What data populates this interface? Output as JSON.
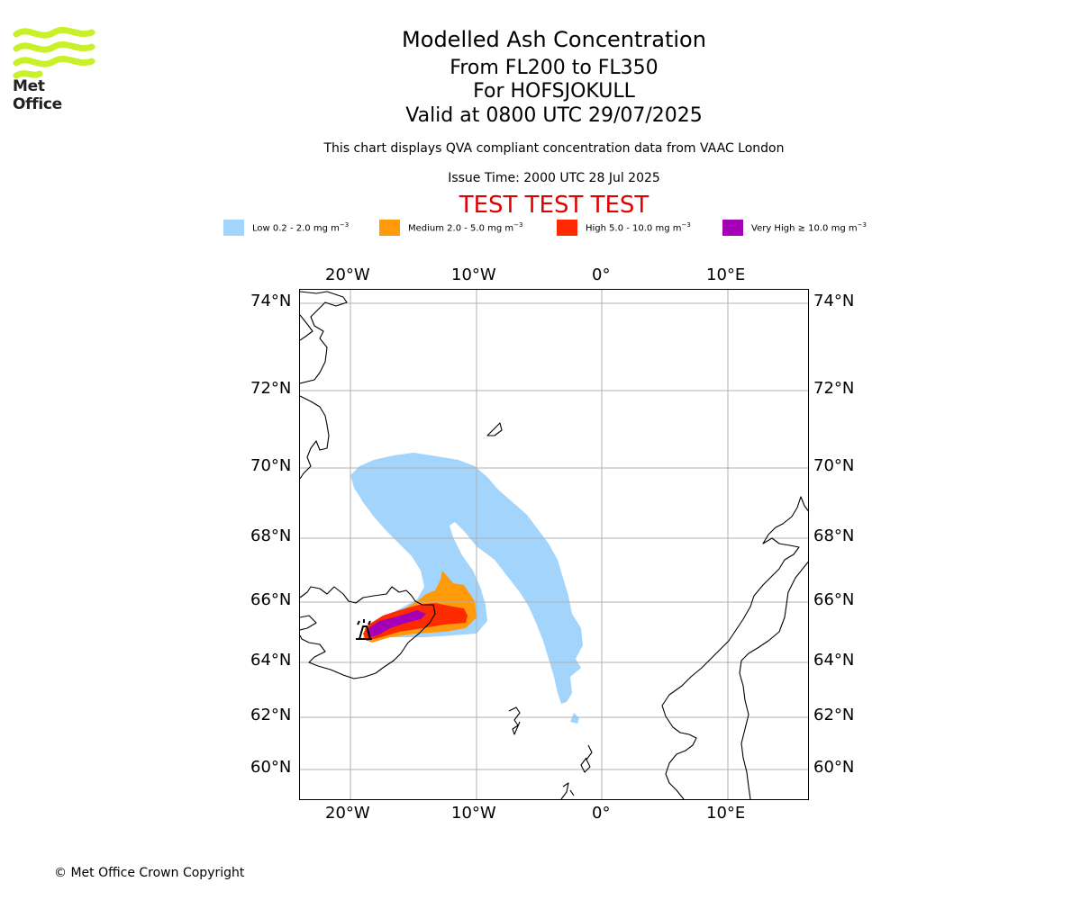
{
  "logo": {
    "text": "Met Office",
    "icon": "met-office-wave-icon"
  },
  "title": {
    "line1": "Modelled Ash Concentration",
    "line2": "From FL200 to FL350",
    "line3": "For HOFSJOKULL",
    "line4": "Valid at 0800 UTC 29/07/2025"
  },
  "subtitle": "This chart displays QVA compliant concentration data from VAAC London",
  "issue_time": "Issue Time: 2000 UTC 28 Jul 2025",
  "test_banner": "TEST TEST TEST",
  "legend": [
    {
      "label": "Low 0.2 - 2.0 mg m",
      "unit_exp": "−3",
      "color": "#a3d4fb"
    },
    {
      "label": "Medium 2.0 - 5.0 mg m",
      "unit_exp": "−3",
      "color": "#ff9a0a"
    },
    {
      "label": "High 5.0 - 10.0 mg m",
      "unit_exp": "−3",
      "color": "#ff2b00"
    },
    {
      "label": "Very High  ≥  10.0 mg m",
      "unit_exp": "−3",
      "color": "#a400b8"
    }
  ],
  "map": {
    "lon_labels": [
      "20°W",
      "10°W",
      "0°",
      "10°E"
    ],
    "lat_labels": [
      "74°N",
      "72°N",
      "70°N",
      "68°N",
      "66°N",
      "64°N",
      "62°N",
      "60°N"
    ],
    "colors": {
      "grid": "#b0b0b0",
      "coast": "#000000"
    },
    "volcano_symbol": "volcano-icon"
  },
  "copyright": "© Met Office Crown Copyright"
}
